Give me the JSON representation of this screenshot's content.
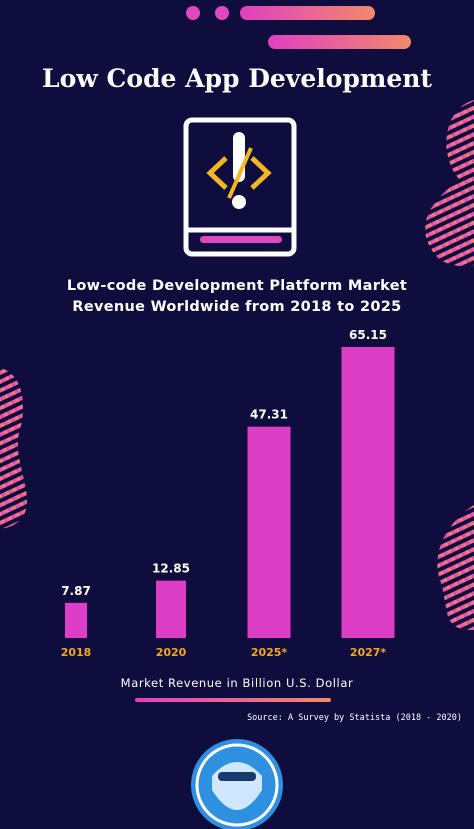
{
  "header": {
    "title": "Low Code App Development"
  },
  "chart_data": {
    "type": "bar",
    "title": "Low-code Development Platform Market Revenue Worldwide from 2018 to 2025",
    "categories": [
      "2018",
      "2020",
      "2025*",
      "2027*"
    ],
    "values": [
      7.87,
      12.85,
      47.31,
      65.15
    ],
    "color": "#dc3fc6",
    "category_color": "#f5a623",
    "x_label": "Market Revenue in Billion U.S. Dollar"
  },
  "footer": {
    "source": "Source: A Survey by Statista (2018 - 2020)"
  }
}
